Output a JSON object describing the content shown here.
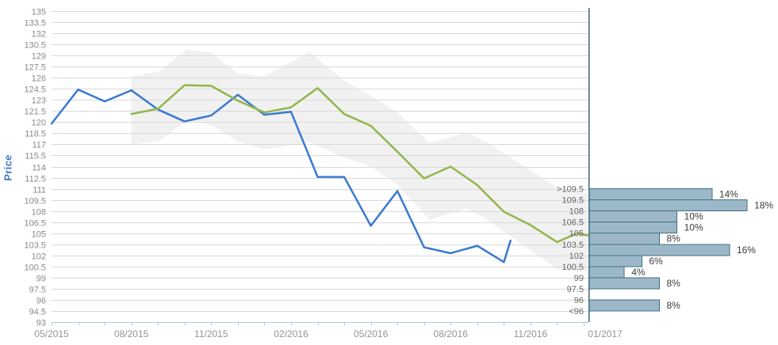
{
  "page": {
    "background": "#ffffff"
  },
  "chart_data": {
    "type": "line",
    "title": "",
    "ylabel": "Price",
    "ylabel_color": "#3f76c8",
    "ylim": [
      93,
      135
    ],
    "y_step": 1.5,
    "y_tick_labels": [
      "135",
      "133.5",
      "132",
      "130.5",
      "129",
      "127.5",
      "126",
      "124.5",
      "123",
      "121.5",
      "120",
      "118.5",
      "117",
      "115.5",
      "114",
      "112.5",
      "111",
      "109.5",
      "108",
      "106.5",
      "105",
      "103.5",
      "102",
      "100.5",
      "99",
      "97.5",
      "96",
      "94.5",
      "93"
    ],
    "grid": true,
    "x_start_date": "05/2015",
    "x_tick_labels": [
      "05/2015",
      "08/2015",
      "11/2015",
      "02/2016",
      "05/2016",
      "08/2016",
      "11/2016"
    ],
    "x_tick_months": [
      0,
      3,
      6,
      9,
      12,
      15,
      18
    ],
    "x_minor_tick_count": 21,
    "forecast_date_label": "01/2017",
    "series": [
      {
        "name": "price-history",
        "color": "#3a7ad0",
        "months": [
          0,
          1,
          2,
          3,
          4,
          5,
          6,
          7,
          8,
          9,
          10,
          11,
          12,
          13,
          14,
          15,
          16,
          17,
          17.25
        ],
        "values": [
          119.8,
          124.4,
          122.8,
          124.3,
          121.7,
          120.1,
          120.9,
          123.7,
          121.0,
          121.4,
          112.6,
          112.6,
          106.0,
          110.7,
          103.1,
          102.3,
          103.3,
          101.1,
          104.0
        ]
      },
      {
        "name": "price-forecast",
        "color": "#94b54a",
        "months": [
          3,
          4,
          5,
          6,
          7,
          8,
          9,
          10,
          11,
          12,
          13,
          14,
          15,
          16,
          17,
          18,
          19,
          19.75,
          20.15
        ],
        "values": [
          121.1,
          121.8,
          125.0,
          124.9,
          122.9,
          121.3,
          122.0,
          124.6,
          121.1,
          119.5,
          116.0,
          112.4,
          114.0,
          111.5,
          107.9,
          106.1,
          103.8,
          105.0,
          104.7
        ]
      }
    ],
    "band": {
      "name": "forecast-range-band",
      "color": "#f0f0f0",
      "opacity": 0.92,
      "months": [
        3,
        4,
        5.1,
        6,
        7,
        8,
        9.7,
        11,
        12,
        13,
        14.2,
        15.6,
        16.3,
        19,
        20.15
      ],
      "top": [
        126.2,
        126.8,
        129.8,
        129.4,
        126.6,
        126.2,
        129.5,
        125.6,
        123.6,
        121.3,
        117.2,
        118.6,
        117.4,
        111.2,
        110.4
      ],
      "bottom": [
        117.0,
        117.4,
        120.2,
        119.6,
        117.4,
        116.3,
        117.3,
        115.2,
        114.0,
        111.5,
        106.8,
        108.3,
        107.0,
        100.2,
        99.8
      ]
    },
    "histogram": {
      "axis_color": "#3a6679",
      "bar_fill": "#9cb8c8",
      "bar_border": "#41707f",
      "bin_boundary_values": [
        111,
        109.5,
        108,
        106.5,
        105,
        103.5,
        102,
        100.5,
        99,
        97.5,
        96,
        94.5
      ],
      "bin_boundary_labels": [
        ">109.5",
        "109.5",
        "108",
        "106.5",
        "105",
        "103.5",
        "102",
        "100.5",
        "99",
        "97.5",
        "96",
        "<96"
      ],
      "bar_percents": [
        14,
        18,
        10,
        10,
        8,
        16,
        6,
        4,
        8,
        0,
        8
      ],
      "bar_value_labels": [
        "14%",
        "18%",
        "10%",
        "10%",
        "8%",
        "16%",
        "6%",
        "4%",
        "8%",
        "",
        "8%"
      ]
    },
    "colors": {
      "gridline": "#d9d9d9",
      "axis_labels": "#8a8a8a",
      "x_labels": "#949494",
      "bin_labels": "#666666",
      "bar_labels": "#3a3a3a",
      "x_axis_line": "#b5cad8"
    }
  }
}
